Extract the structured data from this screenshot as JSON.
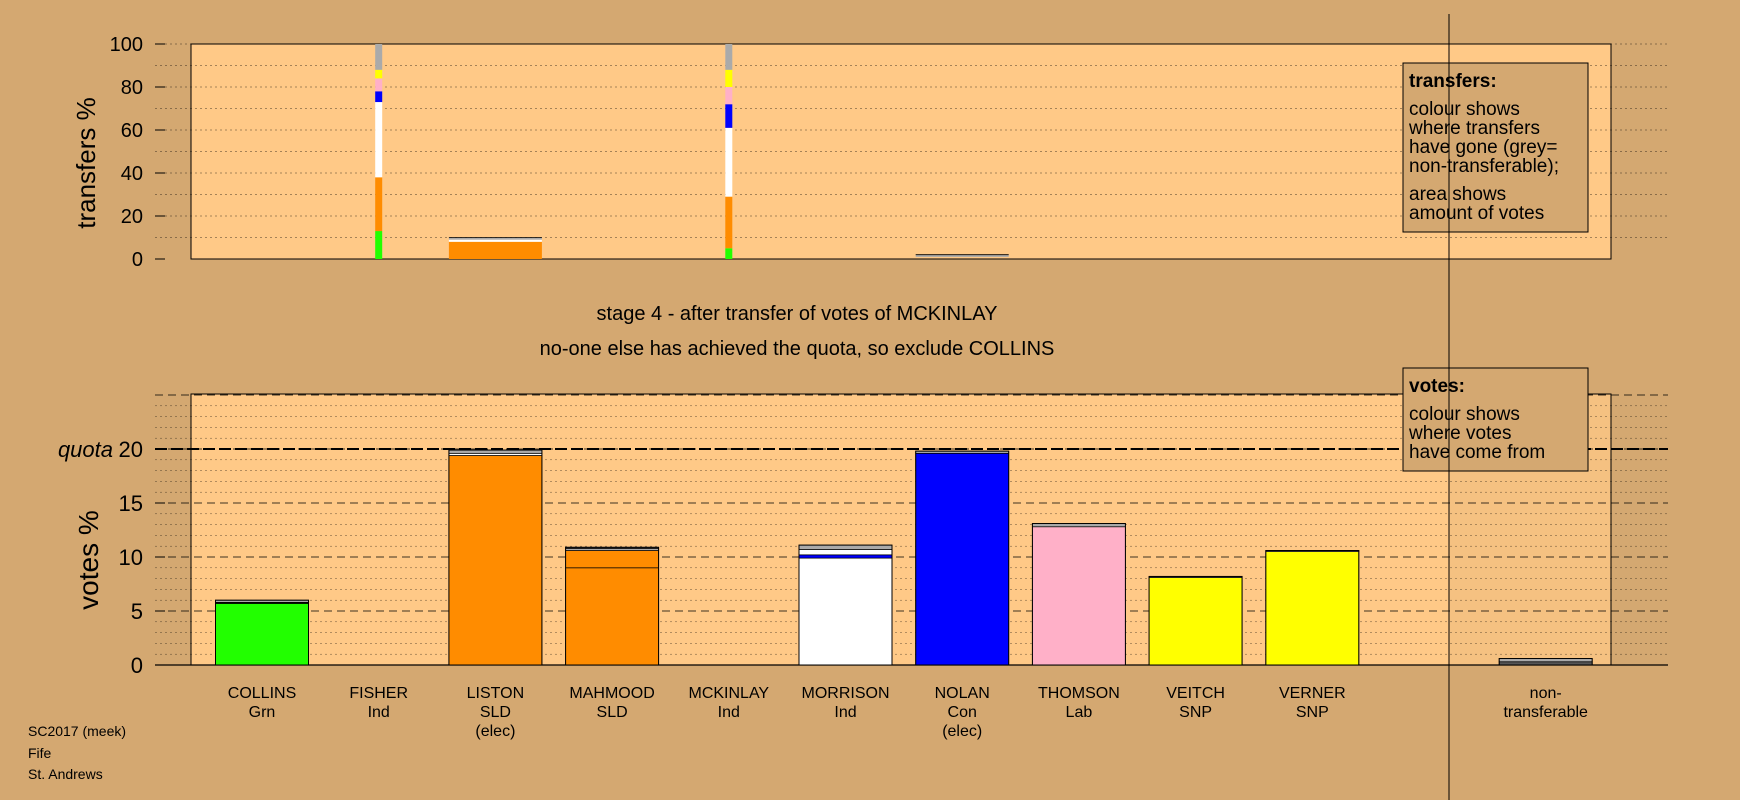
{
  "chart_data": [
    {
      "type": "bar",
      "panel": "transfers",
      "ylabel": "transfers %",
      "ylim": [
        0,
        100
      ],
      "yticks": [
        0,
        20,
        40,
        60,
        80,
        100
      ],
      "categories": [
        "COLLINS",
        "FISHER",
        "LISTON",
        "MAHMOOD",
        "MCKINLAY",
        "MORRISON",
        "NOLAN",
        "THOMSON",
        "VEITCH",
        "VERNER",
        "non-transferable"
      ],
      "transfer_columns": [
        {
          "candidate": "FISHER",
          "style": "thin",
          "segments": [
            {
              "color": "#22ff00",
              "from": 0,
              "to": 13
            },
            {
              "color": "#ff8c00",
              "from": 13,
              "to": 38
            },
            {
              "color": "#ffffff",
              "from": 38,
              "to": 73
            },
            {
              "color": "#0000ff",
              "from": 73,
              "to": 78
            },
            {
              "color": "#ffb0c8",
              "from": 78,
              "to": 84
            },
            {
              "color": "#ffff00",
              "from": 84,
              "to": 88
            },
            {
              "color": "#aaaaaa",
              "from": 88,
              "to": 100
            }
          ]
        },
        {
          "candidate": "MCKINLAY",
          "style": "thin",
          "segments": [
            {
              "color": "#22ff00",
              "from": 0,
              "to": 5
            },
            {
              "color": "#ff8c00",
              "from": 5,
              "to": 29
            },
            {
              "color": "#ffffff",
              "from": 29,
              "to": 61
            },
            {
              "color": "#0000ff",
              "from": 61,
              "to": 72
            },
            {
              "color": "#ffb0c8",
              "from": 72,
              "to": 80
            },
            {
              "color": "#ffff00",
              "from": 80,
              "to": 88
            },
            {
              "color": "#aaaaaa",
              "from": 88,
              "to": 100
            }
          ]
        },
        {
          "candidate": "LISTON",
          "style": "wide",
          "segments": [
            {
              "color": "#ff8c00",
              "from": 0,
              "to": 8
            },
            {
              "color": "#ffffff",
              "from": 8,
              "to": 9
            },
            {
              "color": "#aaaaaa",
              "from": 9,
              "to": 10
            }
          ]
        },
        {
          "candidate": "NOLAN",
          "style": "wide",
          "segments": [
            {
              "color": "#aaaaaa",
              "from": 1,
              "to": 2
            }
          ]
        }
      ],
      "legend": {
        "title": "transfers:",
        "lines1": [
          "colour shows",
          "where transfers",
          "have gone (grey=",
          "non-transferable);"
        ],
        "lines2": [
          "area shows",
          "amount of votes"
        ]
      }
    },
    {
      "type": "bar",
      "panel": "votes",
      "ylabel": "votes %",
      "ylim": [
        0,
        25
      ],
      "yticks": [
        0,
        5,
        10,
        15,
        20
      ],
      "quota": 20,
      "quota_label": "quota",
      "categories": [
        "COLLINS",
        "FISHER",
        "LISTON",
        "MAHMOOD",
        "MCKINLAY",
        "MORRISON",
        "NOLAN",
        "THOMSON",
        "VEITCH",
        "VERNER",
        "non-transferable"
      ],
      "bars": [
        {
          "candidate": "COLLINS",
          "segments": [
            {
              "color": "#22ff00",
              "value": 5.7
            },
            {
              "color": "#000000",
              "value": 0.1
            },
            {
              "color": "#aaaaaa",
              "value": 0.2
            }
          ]
        },
        {
          "candidate": "FISHER",
          "segments": []
        },
        {
          "candidate": "LISTON",
          "segments": [
            {
              "color": "#ff8c00",
              "value": 19.4
            },
            {
              "color": "#ffffff",
              "value": 0.2
            },
            {
              "color": "#aaaaaa",
              "value": 0.3
            }
          ]
        },
        {
          "candidate": "MAHMOOD",
          "segments": [
            {
              "color": "#ff8c00",
              "value": 9.0
            },
            {
              "color": "#ff8c00",
              "value": 1.6
            },
            {
              "color": "#aaaaaa",
              "value": 0.2
            },
            {
              "color": "#555555",
              "value": 0.1
            }
          ]
        },
        {
          "candidate": "MCKINLAY",
          "segments": []
        },
        {
          "candidate": "MORRISON",
          "segments": [
            {
              "color": "#ffffff",
              "value": 9.9
            },
            {
              "color": "#0000ff",
              "value": 0.3
            },
            {
              "color": "#ffffff",
              "value": 0.5
            },
            {
              "color": "#aaaaaa",
              "value": 0.4
            }
          ]
        },
        {
          "candidate": "NOLAN",
          "segments": [
            {
              "color": "#0000ff",
              "value": 19.6
            },
            {
              "color": "#aaaaaa",
              "value": 0.2
            }
          ]
        },
        {
          "candidate": "THOMSON",
          "segments": [
            {
              "color": "#ffb0c8",
              "value": 12.8
            },
            {
              "color": "#aaaaaa",
              "value": 0.3
            }
          ]
        },
        {
          "candidate": "VEITCH",
          "segments": [
            {
              "color": "#ffff00",
              "value": 8.1
            },
            {
              "color": "#aaaaaa",
              "value": 0.1
            }
          ]
        },
        {
          "candidate": "VERNER",
          "segments": [
            {
              "color": "#ffff00",
              "value": 10.5
            },
            {
              "color": "#aaaaaa",
              "value": 0.1
            }
          ]
        },
        {
          "candidate": "",
          "segments": []
        },
        {
          "candidate": "non-transferable",
          "segments": [
            {
              "color": "#555555",
              "value": 0.3
            },
            {
              "color": "#aaaaaa",
              "value": 0.3
            }
          ]
        }
      ],
      "legend": {
        "title": "votes:",
        "lines": [
          "colour shows",
          "where votes",
          "have come from"
        ]
      }
    }
  ],
  "stage_title": "stage 4 - after transfer of votes of MCKINLAY",
  "stage_subtitle": "no-one else has achieved the quota, so exclude COLLINS",
  "candidates": [
    {
      "name": "COLLINS",
      "party": "Grn",
      "note": ""
    },
    {
      "name": "FISHER",
      "party": "Ind",
      "note": ""
    },
    {
      "name": "LISTON",
      "party": "SLD",
      "note": "(elec)"
    },
    {
      "name": "MAHMOOD",
      "party": "SLD",
      "note": ""
    },
    {
      "name": "MCKINLAY",
      "party": "Ind",
      "note": ""
    },
    {
      "name": "MORRISON",
      "party": "Ind",
      "note": ""
    },
    {
      "name": "NOLAN",
      "party": "Con",
      "note": "(elec)"
    },
    {
      "name": "THOMSON",
      "party": "Lab",
      "note": ""
    },
    {
      "name": "VEITCH",
      "party": "SNP",
      "note": ""
    },
    {
      "name": "VERNER",
      "party": "SNP",
      "note": ""
    },
    {
      "name": "non-",
      "party": "transferable",
      "note": ""
    }
  ],
  "footer": {
    "line1": "SC2017 (meek)",
    "line2": "Fife",
    "line3": "St. Andrews"
  },
  "colors": {
    "background": "#d4a871",
    "panel": "#ffc987",
    "green": "#22ff00",
    "orange": "#ff8c00",
    "blue": "#0000ff",
    "pink": "#ffb0c8",
    "yellow": "#ffff00",
    "grey": "#aaaaaa",
    "white": "#ffffff"
  }
}
